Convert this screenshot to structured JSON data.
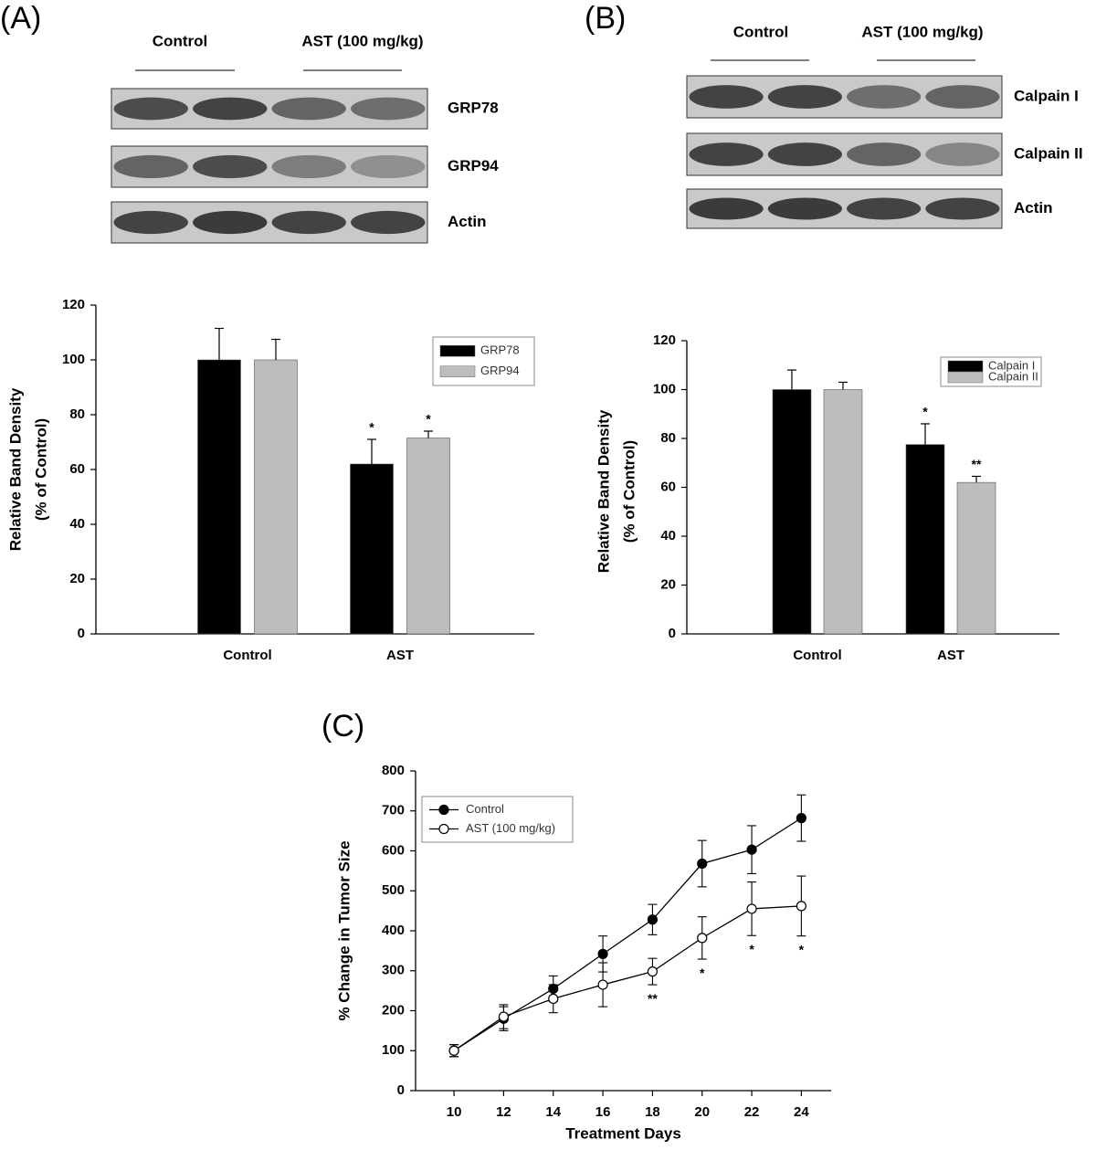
{
  "panels": [
    {
      "label": "(A)",
      "groups": [
        "Control",
        "AST (100 mg/kg)"
      ],
      "bands": [
        "GRP78",
        "GRP94",
        "Actin"
      ]
    },
    {
      "label": "(B)",
      "groups": [
        "Control",
        "AST (100 mg/kg)"
      ],
      "bands": [
        "Calpain I",
        "Calpain II",
        "Actin"
      ]
    },
    {
      "label": "(C)"
    }
  ],
  "chart_data": [
    {
      "type": "bar",
      "categories": [
        "Control",
        "AST"
      ],
      "ylabel": [
        "Relative Band Density",
        "(% of Control)"
      ],
      "ylim": [
        0,
        120
      ],
      "yticks": [
        0,
        20,
        40,
        60,
        80,
        100,
        120
      ],
      "legend": "upper right",
      "series": [
        {
          "name": "GRP78",
          "color": "#000000",
          "values": [
            100,
            62
          ],
          "errors": [
            11.5,
            9
          ],
          "labels": [
            null,
            "*"
          ]
        },
        {
          "name": "GRP94",
          "color": "#bdbdbd",
          "values": [
            100,
            71.5
          ],
          "errors": [
            7.5,
            2.5
          ],
          "labels": [
            null,
            "*"
          ]
        }
      ]
    },
    {
      "type": "bar",
      "categories": [
        "Control",
        "AST"
      ],
      "ylabel": [
        "Relative Band Density",
        "(% of Control)"
      ],
      "ylim": [
        0,
        120
      ],
      "yticks": [
        0,
        20,
        40,
        60,
        80,
        100,
        120
      ],
      "legend": "upper right",
      "series": [
        {
          "name": "Calpain I",
          "color": "#000000",
          "values": [
            100,
            77.5
          ],
          "errors": [
            8,
            8.5
          ],
          "labels": [
            null,
            "*"
          ]
        },
        {
          "name": "Calpain II",
          "color": "#bdbdbd",
          "values": [
            100,
            62
          ],
          "errors": [
            3,
            2.5
          ],
          "labels": [
            null,
            "**"
          ]
        }
      ]
    },
    {
      "type": "line",
      "xlabel": "Treatment Days",
      "ylabel": "% Change in Tumor Size",
      "x": [
        10,
        12,
        14,
        16,
        18,
        20,
        22,
        24
      ],
      "xlim": [
        8.45,
        25.2
      ],
      "xticks": [
        10,
        12,
        14,
        16,
        18,
        20,
        22,
        24
      ],
      "ylim": [
        0,
        800
      ],
      "yticks": [
        0,
        100,
        200,
        300,
        400,
        500,
        600,
        700,
        800
      ],
      "legend": "upper left",
      "series": [
        {
          "name": "Control",
          "color": "#000000",
          "marker": "filled",
          "values": [
            100,
            180,
            255,
            342,
            428,
            568,
            603,
            682
          ],
          "errors": [
            15,
            30,
            32,
            45,
            38,
            58,
            60,
            58
          ]
        },
        {
          "name": "AST (100 mg/kg)",
          "color": "#000000",
          "marker": "open",
          "values": [
            100,
            185,
            230,
            265,
            298,
            382,
            455,
            462
          ],
          "errors": [
            15,
            30,
            35,
            55,
            33,
            53,
            67,
            75
          ],
          "labels": [
            null,
            null,
            null,
            null,
            "**",
            "*",
            "*",
            "*"
          ]
        }
      ]
    }
  ]
}
